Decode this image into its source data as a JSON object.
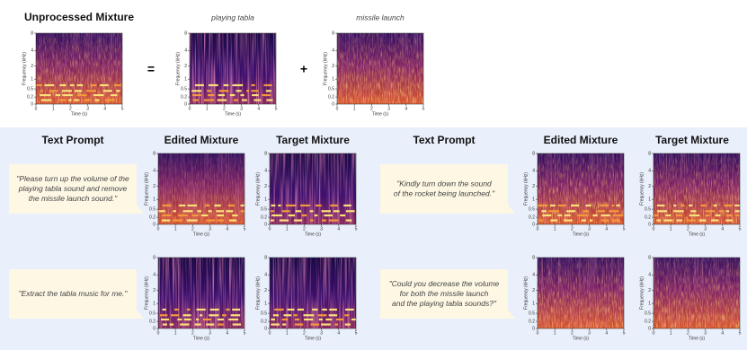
{
  "top": {
    "title": "Unprocessed Mixture",
    "equals": "=",
    "plus": "+",
    "sources": [
      "playing tabla",
      "missile launch"
    ]
  },
  "headers": [
    "Text Prompt",
    "Edited Mixture",
    "Target Mixture",
    "Text Prompt",
    "Edited Mixture",
    "Target Mixture"
  ],
  "prompts": [
    {
      "lines": [
        "\"Please turn up the volume of the",
        "playing tabla sound and remove",
        "the missile launch sound.\""
      ]
    },
    {
      "lines": [
        "\"Kindly turn down the sound",
        "of the rocket being launched.\""
      ]
    },
    {
      "lines": [
        "\"Extract the tabla music for me.\""
      ]
    },
    {
      "lines": [
        "\"Could you decrease the volume",
        "for both the missile launch",
        "and the playing tabla sounds?\""
      ]
    }
  ],
  "spectrogram_axes": {
    "y_label": "Frequency (kHz)",
    "x_label": "Time (s)",
    "y_scale": "mel",
    "ylim": [
      0,
      8
    ],
    "yticks": [
      8,
      4,
      2,
      1,
      0.5,
      0.2,
      0
    ],
    "xlim": [
      0,
      5
    ],
    "xticks": [
      0,
      1,
      2,
      3,
      4,
      5
    ]
  }
}
